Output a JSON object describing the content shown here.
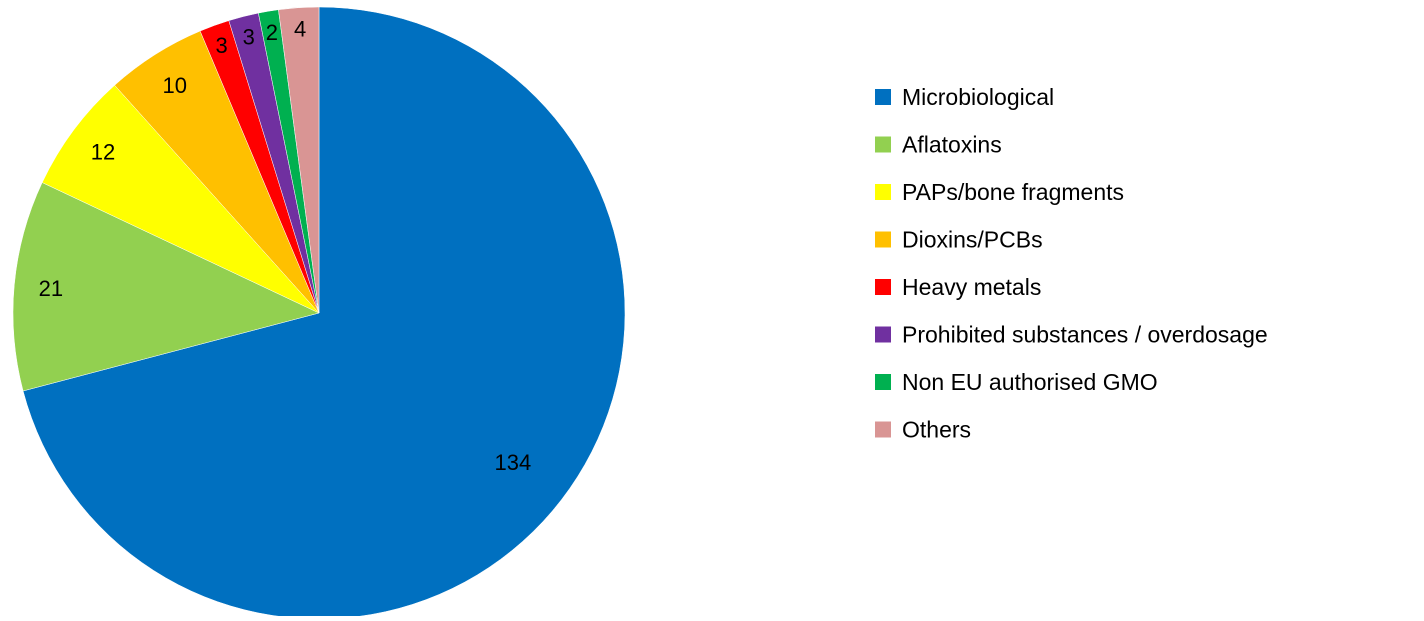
{
  "chart_data": {
    "type": "pie",
    "categories": [
      "Microbiological",
      "Aflatoxins",
      "PAPs/bone fragments",
      "Dioxins/PCBs",
      "Heavy metals",
      "Prohibited substances / overdosage",
      "Non EU authorised GMO",
      "Others"
    ],
    "values": [
      134,
      21,
      12,
      10,
      3,
      3,
      2,
      4
    ],
    "colors": [
      "#0070c0",
      "#92d050",
      "#ffff00",
      "#ffc000",
      "#ff0000",
      "#7030a0",
      "#00b050",
      "#d99594"
    ],
    "legend": "right"
  }
}
